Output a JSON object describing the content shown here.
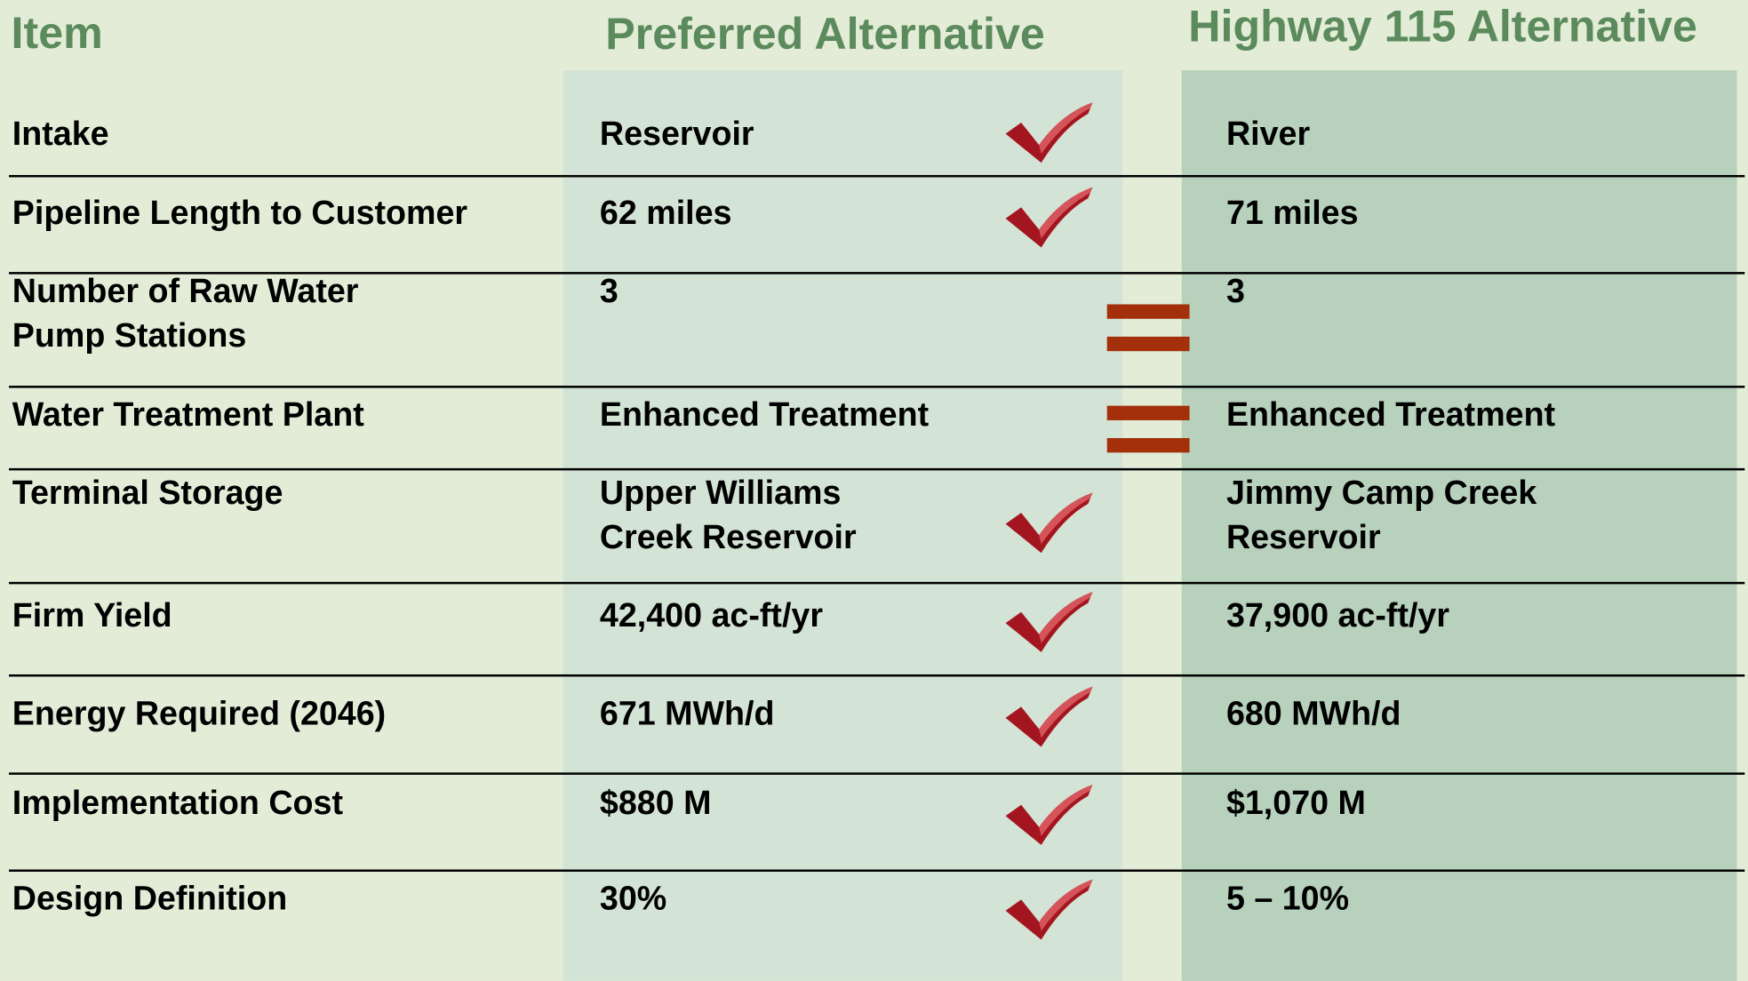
{
  "header": {
    "item": "Item",
    "preferred": "Preferred Alternative",
    "highway": "Highway 115 Alternative"
  },
  "table": {
    "rows": [
      [
        "Intake",
        "Reservoir",
        "River"
      ],
      [
        "Pipeline Length to Customer",
        "62 miles",
        "71 miles"
      ],
      [
        "Number of Raw Water\nPump Stations",
        "3",
        "3"
      ],
      [
        "Water Treatment Plant",
        "Enhanced Treatment",
        "Enhanced Treatment"
      ],
      [
        "Terminal Storage",
        "Upper Williams\nCreek Reservoir",
        "Jimmy Camp Creek\nReservoir"
      ],
      [
        "Firm Yield",
        "42,400 ac-ft/yr",
        "37,900 ac-ft/yr"
      ],
      [
        "Energy Required (2046)",
        "671 MWh/d",
        "680 MWh/d"
      ],
      [
        "Implementation Cost",
        "$880 M",
        "$1,070 M"
      ],
      [
        "Design Definition",
        "30%",
        "5 – 10%"
      ]
    ]
  }
}
